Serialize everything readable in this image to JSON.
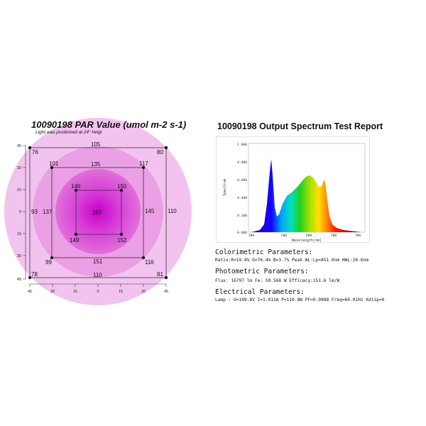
{
  "par": {
    "title": "10090198 PAR Value (umol m-2 s-1)",
    "subtitle": "Light was positioned at 24\" heigt",
    "axis_ticks_y": [
      "45",
      "30",
      "15",
      "0",
      "15",
      "30",
      "45"
    ],
    "axis_ticks_x": [
      "45",
      "30",
      "15",
      "0",
      "15",
      "30",
      "45"
    ],
    "points": [
      {
        "label": "76"
      },
      {
        "label": "105"
      },
      {
        "label": "80"
      },
      {
        "label": "101"
      },
      {
        "label": "135"
      },
      {
        "label": "117"
      },
      {
        "label": "146"
      },
      {
        "label": "150"
      },
      {
        "label": "93"
      },
      {
        "label": "137"
      },
      {
        "label": "267"
      },
      {
        "label": "145"
      },
      {
        "label": "110"
      },
      {
        "label": "149"
      },
      {
        "label": "152"
      },
      {
        "label": "99"
      },
      {
        "label": "151"
      },
      {
        "label": "116"
      },
      {
        "label": "78"
      },
      {
        "label": "110"
      },
      {
        "label": "81"
      }
    ],
    "colors": {
      "outer": "#f2c3ee",
      "ring2": "#eb9fe4",
      "ring3": "#e070da",
      "inner": "#d740d4",
      "center": "#d012cc"
    }
  },
  "report": {
    "title": "10090198 Output Spectrum Test Report",
    "spectrum": {
      "ylabel": "Spectrum",
      "xlabel": "Wavelength(nm)",
      "yticks": [
        "1.000",
        "0.800",
        "0.600",
        "0.400",
        "0.200",
        "0.000"
      ],
      "xticks": [
        "380",
        "500",
        "600",
        "700",
        "780"
      ]
    },
    "colorimetric": {
      "heading": "Colorimetric Parameters:",
      "line": "Ratio:R=19.8% G=76.4% B=3.7%  Peak WL:Lp=451.0nm  HWL:20.6nm"
    },
    "photometric": {
      "heading": "Photometric Parameters:",
      "line": "Flux: 16797 lm   Fe: 50.568 W   Efficacy:151.6 lm/W"
    },
    "electrical": {
      "heading": "Electrical Parameters:",
      "line": "Lamp    : U=109.8V  I=1.011A  P=110.8W PF=0.9988  Freq=60.01Hz Kdisp=0"
    }
  }
}
